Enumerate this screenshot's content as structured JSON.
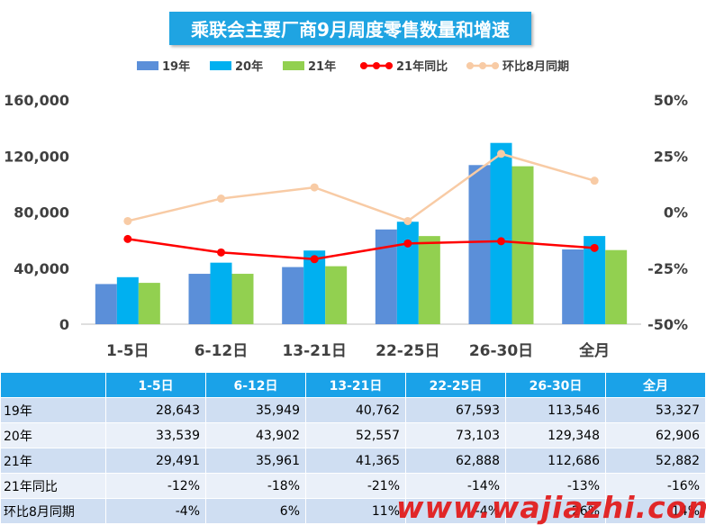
{
  "chart_data": {
    "type": "bar",
    "title": "乘联会主要厂商9月周度零售数量和增速",
    "categories": [
      "1-5日",
      "6-12日",
      "13-21日",
      "22-25日",
      "26-30日",
      "全月"
    ],
    "series": [
      {
        "name": "19年",
        "kind": "bar",
        "axis": "left",
        "color": "#5b8fd9",
        "values": [
          28643,
          35949,
          40762,
          67593,
          113546,
          53327
        ]
      },
      {
        "name": "20年",
        "kind": "bar",
        "axis": "left",
        "color": "#00b0f0",
        "values": [
          33539,
          43902,
          52557,
          73103,
          129348,
          62906
        ]
      },
      {
        "name": "21年",
        "kind": "bar",
        "axis": "left",
        "color": "#92d050",
        "values": [
          29491,
          35961,
          41365,
          62888,
          112686,
          52882
        ]
      },
      {
        "name": "21年同比",
        "kind": "line",
        "axis": "right",
        "color": "#ff0000",
        "values": [
          -12,
          -18,
          -21,
          -14,
          -13,
          -16
        ]
      },
      {
        "name": "环比8月同期",
        "kind": "line",
        "axis": "right",
        "color": "#f8cba5",
        "values": [
          -4,
          6,
          11,
          -4,
          26,
          14
        ]
      }
    ],
    "ylim_left": [
      0,
      160000
    ],
    "yticks_left": [
      "160,000",
      "120,000",
      "80,000",
      "40,000",
      "0"
    ],
    "ylim_right": [
      -50,
      50
    ],
    "yticks_right": [
      "50%",
      "25%",
      "0%",
      "-25%",
      "-50%"
    ],
    "legend_position": "top",
    "grid": false
  },
  "table": {
    "header": [
      "",
      "1-5日",
      "6-12日",
      "13-21日",
      "22-25日",
      "26-30日",
      "全月"
    ],
    "rows": [
      {
        "label": "19年",
        "cells": [
          "28,643",
          "35,949",
          "40,762",
          "67,593",
          "113,546",
          "53,327"
        ]
      },
      {
        "label": "20年",
        "cells": [
          "33,539",
          "43,902",
          "52,557",
          "73,103",
          "129,348",
          "62,906"
        ]
      },
      {
        "label": "21年",
        "cells": [
          "29,491",
          "35,961",
          "41,365",
          "62,888",
          "112,686",
          "52,882"
        ]
      },
      {
        "label": "21年同比",
        "cells": [
          "-12%",
          "-18%",
          "-21%",
          "-14%",
          "-13%",
          "-16%"
        ]
      },
      {
        "label": "环比8月同期",
        "cells": [
          "-4%",
          "6%",
          "11%",
          "-4%",
          "26%",
          "14%"
        ]
      }
    ]
  },
  "watermark": "www.wajiazhi.com"
}
